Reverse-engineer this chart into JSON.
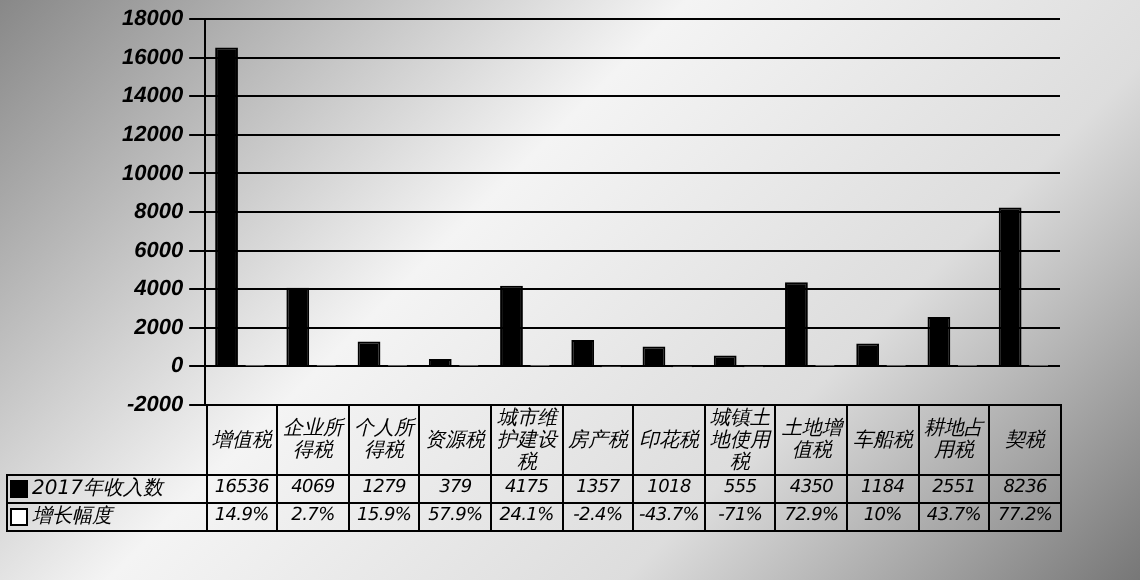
{
  "chart_data": {
    "type": "bar",
    "categories": [
      "增值税",
      "企业所得税",
      "个人所得税",
      "资源税",
      "城市维护建设税",
      "房产税",
      "印花税",
      "城镇土地使用税",
      "土地增值税",
      "车船税",
      "耕地占用税",
      "契税"
    ],
    "series": [
      {
        "name": "2017年收入数",
        "color": "#000000",
        "values": [
          16536,
          4069,
          1279,
          379,
          4175,
          1357,
          1018,
          555,
          4350,
          1184,
          2551,
          8236
        ],
        "value_labels": [
          "16536",
          "4069",
          "1279",
          "379",
          "4175",
          "1357",
          "1018",
          "555",
          "4350",
          "1184",
          "2551",
          "8236"
        ]
      },
      {
        "name": "增长幅度",
        "color": "#ffffff",
        "values": [
          0.149,
          0.027,
          0.159,
          0.579,
          0.241,
          -0.024,
          -0.437,
          -0.71,
          0.729,
          0.1,
          0.437,
          0.772
        ],
        "value_labels": [
          "14.9%",
          "2.7%",
          "15.9%",
          "57.9%",
          "24.1%",
          "-2.4%",
          "-43.7%",
          "-71%",
          "72.9%",
          "10%",
          "43.7%",
          "77.2%"
        ]
      }
    ],
    "ylim": [
      -2000,
      18000
    ],
    "yticks": [
      -2000,
      0,
      2000,
      4000,
      6000,
      8000,
      10000,
      12000,
      14000,
      16000,
      18000
    ],
    "grid": "y",
    "legend": "bottom"
  }
}
